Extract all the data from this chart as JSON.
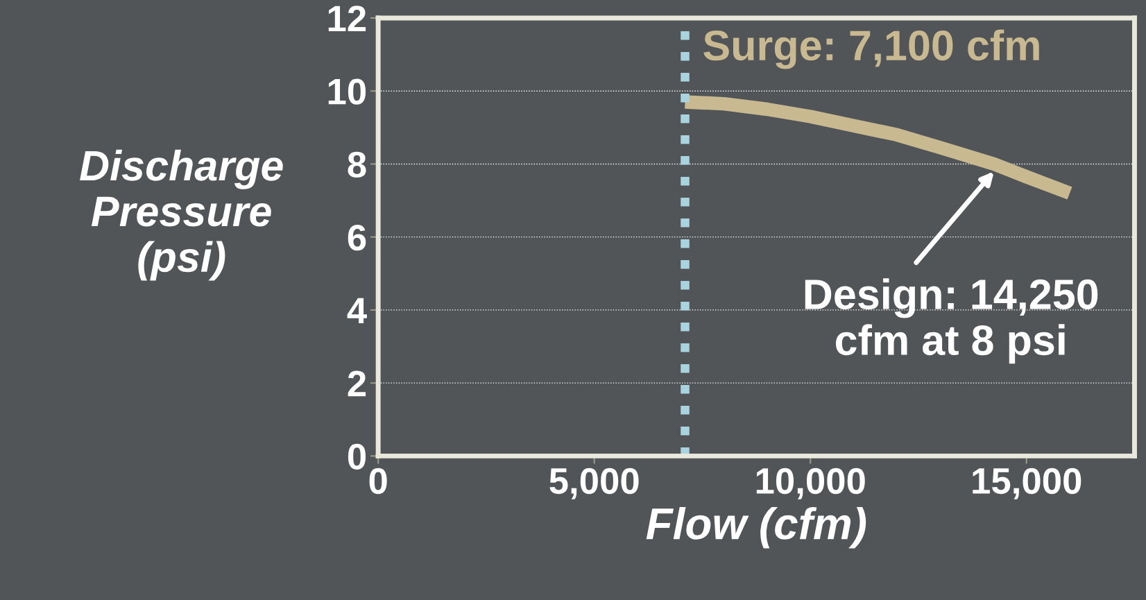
{
  "chart_data": {
    "type": "line",
    "xlabel": "Flow (cfm)",
    "ylabel": "Discharge\nPressure\n(psi)",
    "x": [
      7100,
      8000,
      9000,
      10000,
      11000,
      12000,
      13000,
      14250,
      15000,
      16000
    ],
    "series": [
      {
        "color": "#c9b991",
        "values": [
          9.7,
          9.65,
          9.5,
          9.3,
          9.05,
          8.8,
          8.45,
          8.0,
          7.65,
          7.2
        ]
      }
    ],
    "xlim": [
      0,
      17500
    ],
    "xticks": [
      {
        "value": 0,
        "label": "0"
      },
      {
        "value": 5000,
        "label": "5,000"
      },
      {
        "value": 10000,
        "label": "10,000"
      },
      {
        "value": 15000,
        "label": "15,000"
      }
    ],
    "ylim": [
      0,
      12
    ],
    "yticks": [
      0,
      2,
      4,
      6,
      8,
      10,
      12
    ],
    "grid": "y",
    "marker": "none",
    "line_style": "solid",
    "ref_lines": [
      {
        "axis": "x",
        "value": 7100,
        "label": "Surge: 7,100 cfm",
        "color": "#a8d4e0",
        "line_style": "dotted"
      }
    ],
    "annotations": [
      {
        "text": "Design: 14,250\ncfm at 8 psi",
        "x": 14250,
        "y": 8
      }
    ]
  }
}
